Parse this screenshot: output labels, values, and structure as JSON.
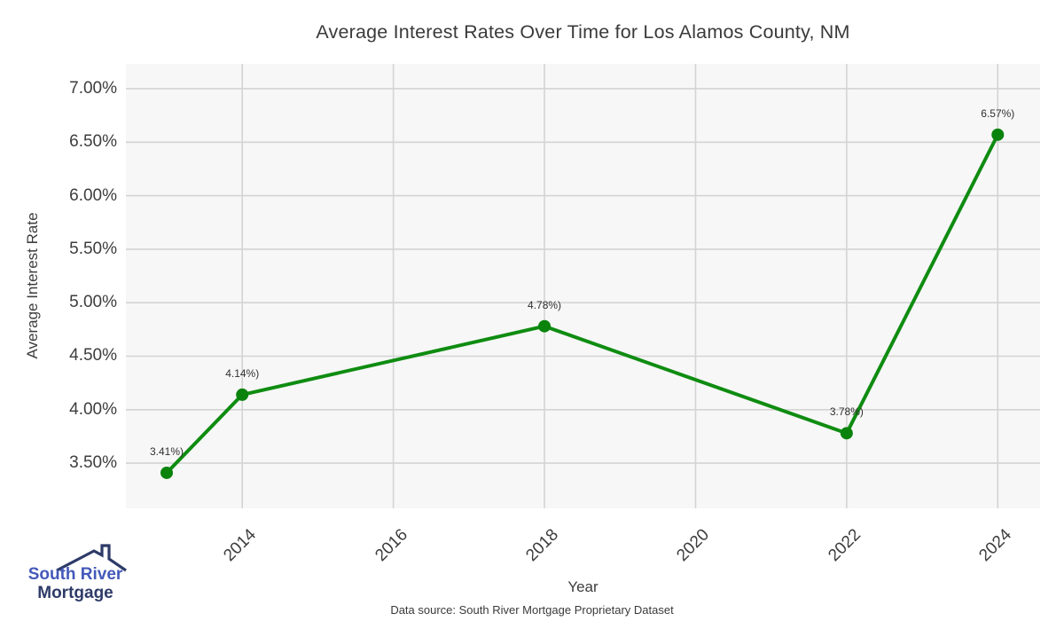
{
  "page": {
    "title": "Average Interest Rates Over Time for Los Alamos County, NM",
    "caption": "Data source: South River Mortgage Proprietary Dataset"
  },
  "logo": {
    "line1": "South River",
    "line2": "Mortgage",
    "roof_color": "#2e3b69",
    "line1_color": "#4459ba",
    "line2_color": "#2e3b69"
  },
  "chart_data": {
    "type": "line",
    "title": "Average Interest Rates Over Time for Los Alamos County, NM",
    "xlabel": "Year",
    "ylabel": "Average Interest Rate",
    "x": [
      2013,
      2014,
      2018,
      2022,
      2024
    ],
    "y": [
      3.41,
      4.14,
      4.78,
      3.78,
      6.57
    ],
    "point_labels": [
      "3.41%)",
      "4.14%)",
      "4.78%)",
      "3.78%)",
      "6.57%)"
    ],
    "xticks": {
      "values": [
        2014,
        2016,
        2018,
        2020,
        2022,
        2024
      ],
      "labels": [
        "2014",
        "2016",
        "2018",
        "2020",
        "2022",
        "2024"
      ]
    },
    "yticks": {
      "values": [
        3.5,
        4.0,
        4.5,
        5.0,
        5.5,
        6.0,
        6.5,
        7.0
      ],
      "labels": [
        "3.50%",
        "4.00%",
        "4.50%",
        "5.00%",
        "5.50%",
        "6.00%",
        "6.50%",
        "7.00%"
      ]
    },
    "xlim": [
      2012.46,
      2024.56
    ],
    "ylim": [
      3.078,
      7.232
    ],
    "grid": true,
    "legend": "none",
    "line_color": "#0f8c11",
    "marker_color": "#0a830d",
    "plot_bg": "#f7f7f7",
    "grid_color": "#d4d4d4"
  }
}
